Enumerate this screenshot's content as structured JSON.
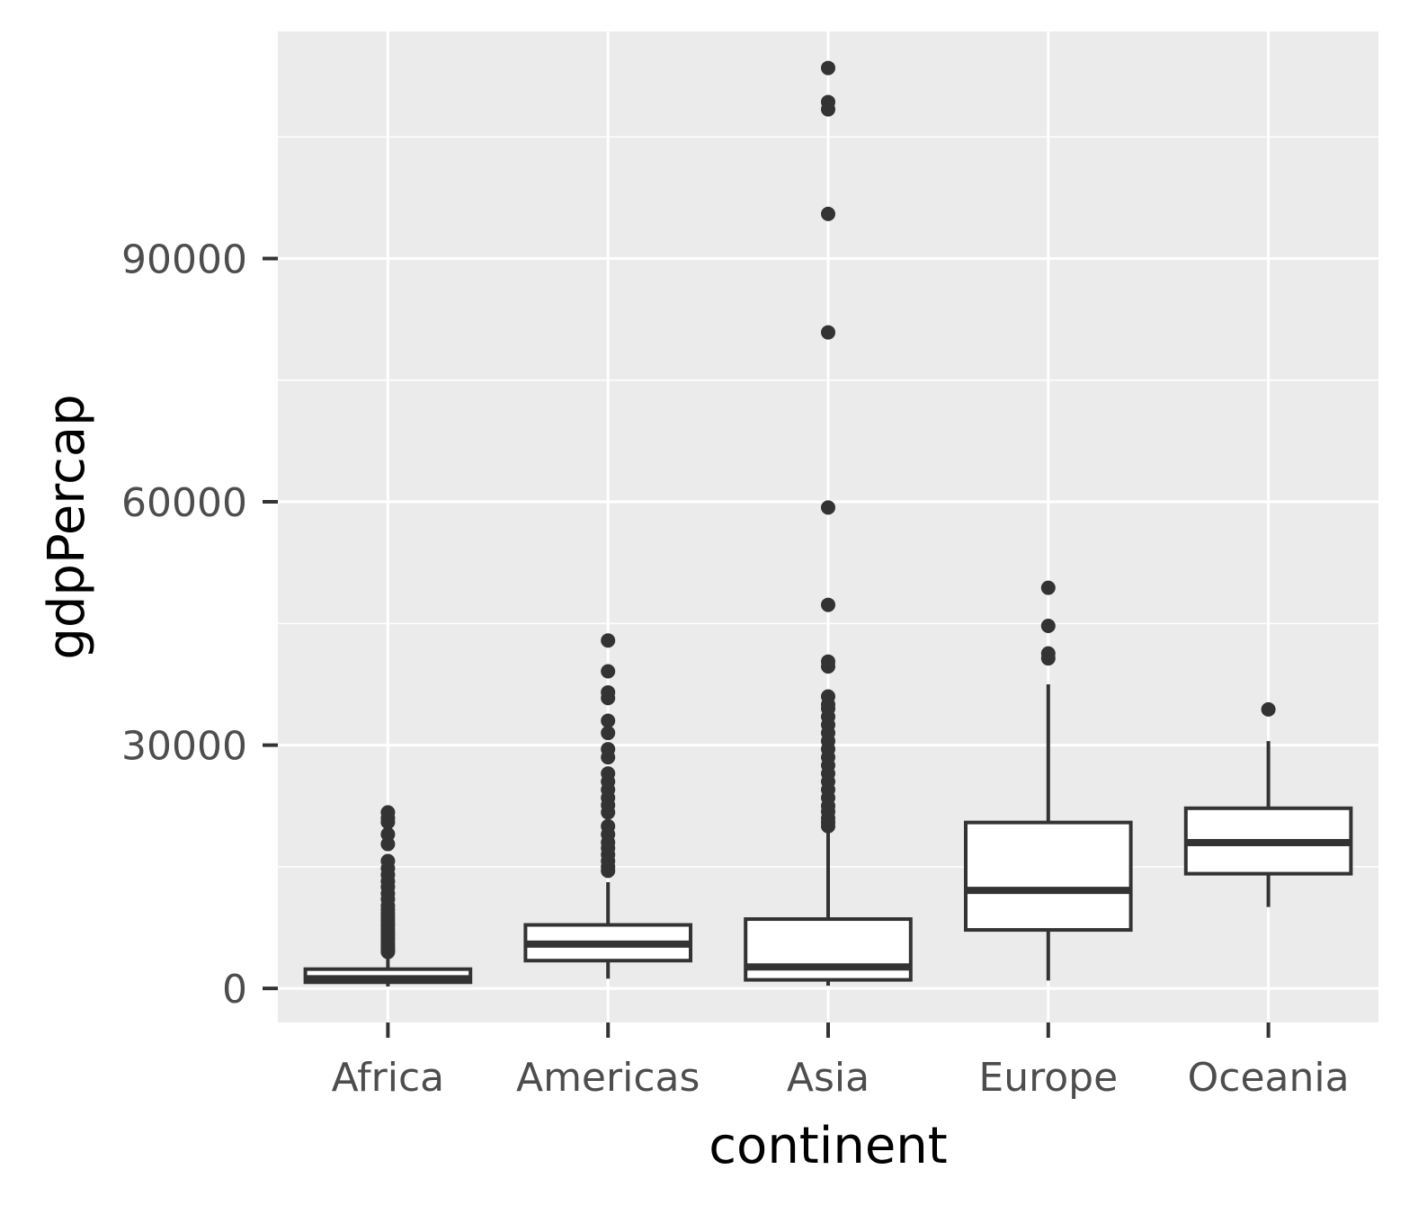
{
  "chart_data": {
    "type": "boxplot",
    "xlabel": "continent",
    "ylabel": "gdpPercap",
    "ylim": [
      -4200,
      118000
    ],
    "y_ticks": [
      0,
      30000,
      60000,
      90000
    ],
    "y_tick_labels": [
      "0",
      "30000",
      "60000",
      "90000"
    ],
    "y_minor_ticks": [
      15000,
      45000,
      75000,
      105000
    ],
    "grid": true,
    "legend": "none",
    "categories": [
      "Africa",
      "Americas",
      "Asia",
      "Europe",
      "Oceania"
    ],
    "boxes": [
      {
        "category": "Africa",
        "whisker_low": 241,
        "q1": 761,
        "median": 1192,
        "q3": 2377,
        "whisker_high": 4300,
        "outliers": [
          4500,
          4700,
          5000,
          5300,
          5600,
          6000,
          6300,
          6600,
          6900,
          7300,
          7700,
          8000,
          8400,
          8800,
          9200,
          9700,
          10200,
          11000,
          11700,
          12500,
          13200,
          14000,
          14800,
          15700,
          17800,
          19000,
          20500,
          21000,
          21700
        ]
      },
      {
        "category": "Americas",
        "whisker_low": 1202,
        "q1": 3428,
        "median": 5466,
        "q3": 7830,
        "whisker_high": 13100,
        "outliers": [
          14500,
          15000,
          15700,
          16500,
          17300,
          18000,
          19000,
          20000,
          21700,
          22600,
          23500,
          24500,
          25500,
          26500,
          28500,
          29500,
          31500,
          33000,
          35800,
          36500,
          39100,
          42900
        ]
      },
      {
        "category": "Asia",
        "whisker_low": 331,
        "q1": 1057,
        "median": 2647,
        "q3": 8549,
        "whisker_high": 19800,
        "outliers": [
          20000,
          20500,
          21000,
          21800,
          22500,
          23500,
          24500,
          25500,
          26500,
          27500,
          28500,
          29500,
          30500,
          31500,
          32500,
          33500,
          34500,
          35000,
          36000,
          39700,
          40300,
          47300,
          59300,
          80900,
          95500,
          108400,
          109300,
          113500
        ]
      },
      {
        "category": "Europe",
        "whisker_low": 974,
        "q1": 7213,
        "median": 12082,
        "q3": 20461,
        "whisker_high": 37500,
        "outliers": [
          40700,
          41300,
          44700,
          49400
        ]
      },
      {
        "category": "Oceania",
        "whisker_low": 10040,
        "q1": 14142,
        "median": 17983,
        "q3": 22214,
        "whisker_high": 30500,
        "outliers": [
          34400
        ]
      }
    ]
  }
}
